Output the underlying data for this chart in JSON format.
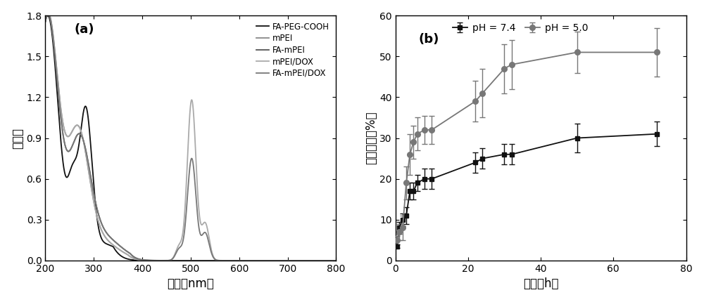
{
  "panel_a": {
    "label": "(a)",
    "xlabel": "波长（nm）",
    "ylabel": "吸光度",
    "xlim": [
      200,
      800
    ],
    "ylim": [
      0.0,
      1.8
    ],
    "yticks": [
      0.0,
      0.3,
      0.6,
      0.9,
      1.2,
      1.5,
      1.8
    ],
    "xticks": [
      200,
      300,
      400,
      500,
      600,
      700,
      800
    ],
    "legend_labels": [
      "FA-PEG-COOH",
      "mPEI",
      "FA-mPEI",
      "mPEI/DOX",
      "FA-mPEI/DOX"
    ],
    "line_colors": [
      "#111111",
      "#888888",
      "#555555",
      "#aaaaaa",
      "#777777"
    ],
    "line_widths": [
      1.3,
      1.3,
      1.3,
      1.3,
      1.3
    ]
  },
  "panel_b": {
    "label": "(b)",
    "xlabel": "时间（h）",
    "ylabel": "累计释放（%）",
    "xlim": [
      0,
      80
    ],
    "ylim": [
      0,
      60
    ],
    "yticks": [
      0,
      10,
      20,
      30,
      40,
      50,
      60
    ],
    "xticks": [
      0,
      20,
      40,
      60,
      80
    ],
    "ph74_label": "pH = 7.4",
    "ph50_label": "pH = 5.0",
    "ph74_color": "#111111",
    "ph50_color": "#777777",
    "ph74_x": [
      0.5,
      1,
      2,
      3,
      4,
      5,
      6,
      8,
      10,
      22,
      24,
      30,
      32,
      50,
      72
    ],
    "ph74_y": [
      3.5,
      8,
      10,
      11,
      17,
      17,
      19,
      20,
      20,
      24,
      25,
      26,
      26,
      30,
      31
    ],
    "ph74_err": [
      0.5,
      1.5,
      1.5,
      2,
      2,
      2,
      2,
      2.5,
      2.5,
      2.5,
      2.5,
      2.5,
      2.5,
      3.5,
      3
    ],
    "ph50_x": [
      0.5,
      1,
      2,
      3,
      4,
      5,
      6,
      8,
      10,
      22,
      24,
      30,
      32,
      50,
      72
    ],
    "ph50_y": [
      5,
      7,
      8,
      19,
      26,
      29,
      31,
      32,
      32,
      39,
      41,
      47,
      48,
      51,
      51
    ],
    "ph50_err": [
      1,
      2,
      3,
      4,
      5,
      4,
      4,
      3.5,
      3.5,
      5,
      6,
      6,
      6,
      5,
      6
    ]
  }
}
